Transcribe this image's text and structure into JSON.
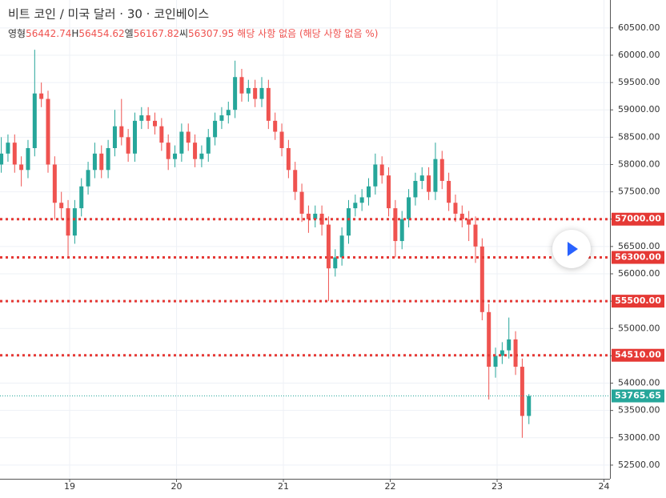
{
  "chart_data": {
    "type": "candlestick",
    "title": "비트 코인 / 미국 달러 · 30 · 코인베이스",
    "ohlc_legend": [
      {
        "label": "영형",
        "value": 56442.74
      },
      {
        "label": "H",
        "value": 56454.62
      },
      {
        "label": "엘",
        "value": 56167.82
      },
      {
        "label": "씨",
        "value": 56307.95
      }
    ],
    "note": "해당 사항 없음 (해당 사항 없음 %)",
    "up_color": "#26a69a",
    "down_color": "#ef5350",
    "level_color": "#e53935",
    "xlim": [
      18.348,
      24.056
    ],
    "xticks": [
      19,
      20,
      21,
      22,
      23,
      24
    ],
    "ylim": [
      52250,
      61010
    ],
    "yticks": [
      {
        "value": 52500,
        "label": "52500.00"
      },
      {
        "value": 53000,
        "label": "53000.00"
      },
      {
        "value": 53500,
        "label": "53500.00"
      },
      {
        "value": 54000,
        "label": "54000.00"
      },
      {
        "value": 54500,
        "label": "54500.00"
      },
      {
        "value": 55000,
        "label": "55000.00"
      },
      {
        "value": 55500,
        "label": "55500.00"
      },
      {
        "value": 56000,
        "label": "56000.00"
      },
      {
        "value": 56500,
        "label": "56500.00"
      },
      {
        "value": 57000,
        "label": "57000.00"
      },
      {
        "value": 57500,
        "label": "57500.00"
      },
      {
        "value": 58000,
        "label": "58000.00"
      },
      {
        "value": 58500,
        "label": "58500.00"
      },
      {
        "value": 59000,
        "label": "59000.00"
      },
      {
        "value": 59500,
        "label": "59500.00"
      },
      {
        "value": 60000,
        "label": "60000.00"
      },
      {
        "value": 60500,
        "label": "60500.00"
      }
    ],
    "grid": true,
    "levels": [
      {
        "value": 57000,
        "label": "57000.00"
      },
      {
        "value": 56300,
        "label": "56300.00"
      },
      {
        "value": 55500,
        "label": "55500.00"
      },
      {
        "value": 54510,
        "label": "54510.00"
      }
    ],
    "x": [
      18.36,
      18.4225,
      18.485,
      18.5475,
      18.61,
      18.6725,
      18.735,
      18.7975,
      18.86,
      18.9225,
      18.985,
      19.0475,
      19.11,
      19.1725,
      19.235,
      19.2975,
      19.36,
      19.4225,
      19.485,
      19.5475,
      19.61,
      19.6725,
      19.735,
      19.7975,
      19.86,
      19.9225,
      19.985,
      20.0475,
      20.11,
      20.1725,
      20.235,
      20.2975,
      20.36,
      20.4225,
      20.485,
      20.5475,
      20.61,
      20.6725,
      20.735,
      20.7975,
      20.86,
      20.9225,
      20.985,
      21.0475,
      21.11,
      21.1725,
      21.235,
      21.2975,
      21.36,
      21.4225,
      21.485,
      21.5475,
      21.61,
      21.6725,
      21.735,
      21.7975,
      21.86,
      21.9225,
      21.985,
      22.0475,
      22.11,
      22.1725,
      22.235,
      22.2975,
      22.36,
      22.4225,
      22.485,
      22.5475,
      22.61,
      22.6725,
      22.735,
      22.7975,
      22.86,
      22.9225,
      22.985,
      23.0475,
      23.11,
      23.1725,
      23.235,
      23.2975
    ],
    "open": [
      58000,
      58200,
      58400,
      58000,
      57900,
      58300,
      59300,
      59200,
      58000,
      57300,
      57200,
      56700,
      57200,
      57600,
      57900,
      58200,
      57900,
      58300,
      58700,
      58500,
      58200,
      58800,
      58900,
      58800,
      58700,
      58400,
      58100,
      58200,
      58600,
      58400,
      58100,
      58200,
      58500,
      58800,
      58900,
      59000,
      59600,
      59300,
      59400,
      59200,
      59400,
      58800,
      58600,
      58300,
      57900,
      57500,
      57100,
      57000,
      57100,
      56900,
      56100,
      56300,
      56700,
      57200,
      57300,
      57400,
      57600,
      58000,
      57800,
      57200,
      56600,
      57000,
      57400,
      57700,
      57800,
      57500,
      58100,
      57700,
      57300,
      57100,
      57000,
      56900,
      56500,
      55300,
      54300,
      54500,
      54600,
      54800,
      54300,
      53400
    ],
    "high": [
      58500,
      58550,
      58550,
      58150,
      58450,
      60100,
      59500,
      59350,
      58150,
      57500,
      57350,
      57350,
      57750,
      58050,
      58400,
      58350,
      58450,
      59000,
      59200,
      58650,
      58950,
      59050,
      59050,
      58950,
      58850,
      58550,
      58350,
      58750,
      58750,
      58550,
      58350,
      58650,
      58950,
      59050,
      59150,
      59900,
      59750,
      59550,
      59550,
      59600,
      59550,
      58950,
      58750,
      58450,
      58050,
      57650,
      57250,
      57250,
      57250,
      57050,
      56450,
      56850,
      57350,
      57450,
      57550,
      57750,
      58200,
      58150,
      57950,
      57350,
      57150,
      57550,
      57850,
      57950,
      57950,
      58400,
      58250,
      57850,
      57450,
      57250,
      57150,
      57050,
      56650,
      55450,
      54650,
      54750,
      55200,
      54950,
      54450,
      53800
    ],
    "low": [
      57850,
      58050,
      57850,
      57600,
      57750,
      58150,
      59050,
      57850,
      57000,
      57000,
      56300,
      56550,
      57050,
      57450,
      57750,
      57750,
      57750,
      58150,
      58350,
      58050,
      58050,
      58650,
      58650,
      58550,
      58250,
      57900,
      57950,
      58050,
      58250,
      57950,
      57950,
      58050,
      58350,
      58650,
      58750,
      58850,
      59150,
      59150,
      59050,
      59050,
      58650,
      58450,
      58150,
      57750,
      57350,
      56950,
      56750,
      56850,
      56700,
      55500,
      55950,
      56150,
      56550,
      57050,
      57150,
      57250,
      57450,
      57650,
      57050,
      56300,
      56450,
      56850,
      57250,
      57550,
      57350,
      57350,
      57550,
      57150,
      56950,
      56850,
      56600,
      56200,
      55150,
      53700,
      54100,
      54350,
      54450,
      54150,
      53000,
      53250
    ],
    "close": [
      58200,
      58400,
      58000,
      57900,
      58300,
      59300,
      59200,
      58000,
      57300,
      57200,
      56700,
      57200,
      57600,
      57900,
      58200,
      57900,
      58300,
      58700,
      58500,
      58200,
      58800,
      58900,
      58800,
      58700,
      58400,
      58100,
      58200,
      58600,
      58400,
      58100,
      58200,
      58500,
      58800,
      58900,
      59000,
      59600,
      59300,
      59400,
      59200,
      59400,
      58800,
      58600,
      58300,
      57900,
      57500,
      57100,
      57000,
      57100,
      56900,
      56100,
      56300,
      56700,
      57200,
      57300,
      57400,
      57600,
      58000,
      57800,
      57200,
      56600,
      57000,
      57400,
      57700,
      57800,
      57500,
      58100,
      57700,
      57300,
      57100,
      57000,
      56900,
      56500,
      55300,
      54300,
      54500,
      54600,
      54800,
      54300,
      53400,
      53765.65
    ]
  }
}
